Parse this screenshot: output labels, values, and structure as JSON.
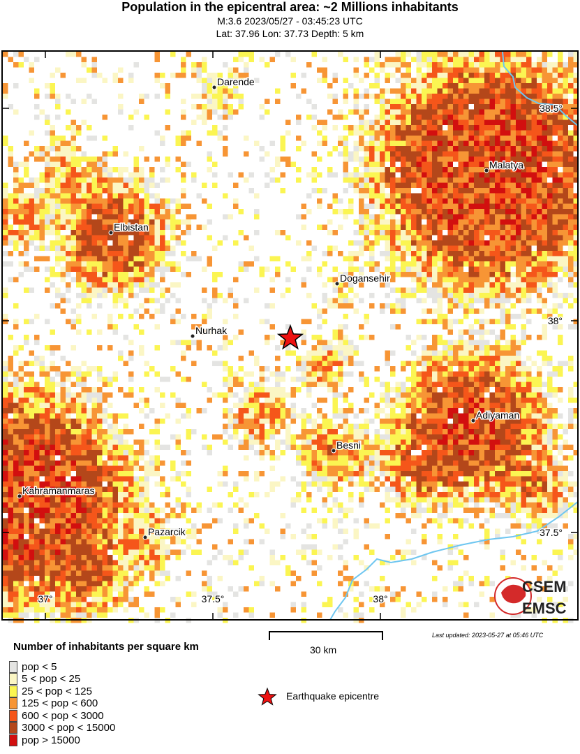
{
  "header": {
    "title": "Population in the epicentral area: ~2 Millions inhabitants",
    "line1": "M:3.6 2023/05/27 - 03:45:23 UTC",
    "line2": "Lat: 37.96 Lon: 37.73 Depth: 5 km"
  },
  "map": {
    "cities": [
      "Darende",
      "Malatya",
      "Elbistan",
      "Dogansehir",
      "Nurhak",
      "Adiyaman",
      "Besni",
      "Kahramanmaras",
      "Pazarcik"
    ],
    "lon_labels": [
      "37°",
      "37.5°",
      "38°"
    ],
    "lat_labels": [
      "38.5°",
      "38°",
      "37.5°"
    ],
    "river_color": "#6ec6f0",
    "epicentre_color": "#ee1111",
    "logo": {
      "top": "CSEM",
      "bottom": "EMSC"
    }
  },
  "scale": {
    "label": "30 km"
  },
  "updated": "Last updated: 2023-05-27 at 05:46 UTC",
  "legend": {
    "title": "Number of inhabitants per square km",
    "items": [
      {
        "label": "pop < 5",
        "color": "#e4e4e2"
      },
      {
        "label": "5 < pop < 25",
        "color": "#fbf6c4"
      },
      {
        "label": "25 < pop < 125",
        "color": "#fbf552"
      },
      {
        "label": "125 < pop < 600",
        "color": "#f79535"
      },
      {
        "label": "600 < pop < 3000",
        "color": "#f5561a"
      },
      {
        "label": "3000 < pop < 15000",
        "color": "#b4471a"
      },
      {
        "label": "pop > 15000",
        "color": "#d20f0f"
      }
    ],
    "epicentre_label": "Earthquake epicentre"
  }
}
